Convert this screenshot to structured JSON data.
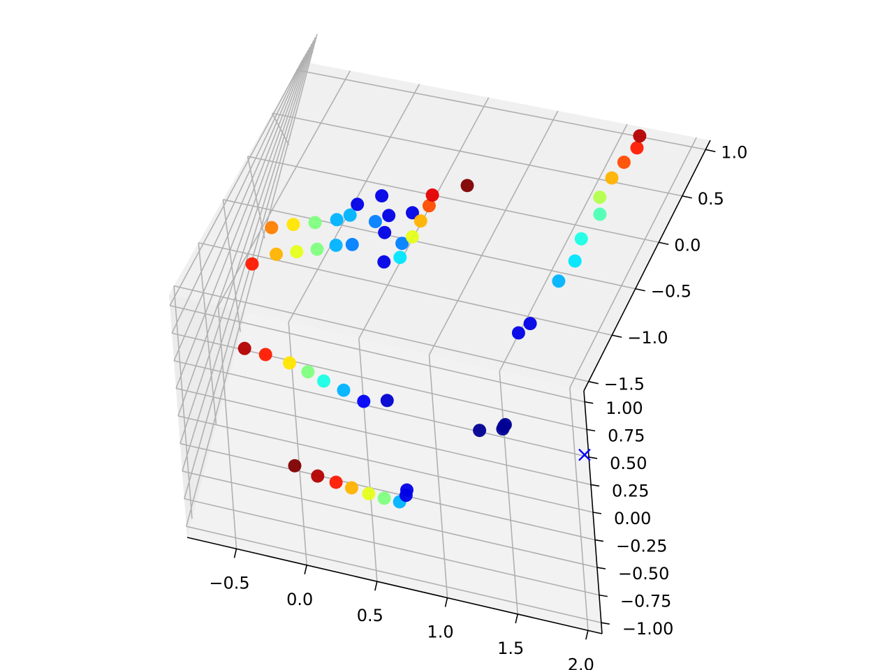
{
  "chart_data": {
    "type": "scatter",
    "projection": "3d",
    "title": "",
    "xlabel": "",
    "ylabel": "",
    "zlabel": "",
    "colormap": "jet",
    "xlim": [
      -0.85,
      2.1
    ],
    "ylim": [
      -1.1,
      1.1
    ],
    "zlim": [
      -1.6,
      1.1
    ],
    "x_ticks": [
      "−0.5",
      "0.0",
      "0.5",
      "1.0",
      "1.5",
      "2.0"
    ],
    "y_ticks": [
      "−1.00",
      "−0.75",
      "−0.50",
      "−0.25",
      "0.00",
      "0.25",
      "0.50",
      "0.75",
      "1.00"
    ],
    "z_ticks": [
      "−1.5",
      "−1.0",
      "−0.5",
      "0.0",
      "0.5",
      "1.0"
    ],
    "grid": true,
    "series": [
      {
        "marker": "circle",
        "points": [
          {
            "x": -0.5,
            "y": 0.26,
            "z": -1.2,
            "c": 0.95
          },
          {
            "x": -0.33,
            "y": 0.32,
            "z": -1.25,
            "c": 0.85
          },
          {
            "x": -0.14,
            "y": 0.36,
            "z": -1.3,
            "c": 0.65
          },
          {
            "x": 0.01,
            "y": 0.38,
            "z": -1.35,
            "c": 0.5
          },
          {
            "x": 0.14,
            "y": 0.39,
            "z": -1.4,
            "c": 0.4
          },
          {
            "x": 0.3,
            "y": 0.41,
            "z": -1.45,
            "c": 0.3
          },
          {
            "x": 0.46,
            "y": 0.41,
            "z": -1.5,
            "c": 0.12
          },
          {
            "x": 0.63,
            "y": 0.47,
            "z": -1.5,
            "c": 0.08
          },
          {
            "x": -0.12,
            "y": -0.53,
            "z": -1.4,
            "c": 1.0
          },
          {
            "x": 0.04,
            "y": -0.58,
            "z": -1.4,
            "c": 0.95
          },
          {
            "x": 0.17,
            "y": -0.6,
            "z": -1.4,
            "c": 0.85
          },
          {
            "x": 0.28,
            "y": -0.62,
            "z": -1.4,
            "c": 0.7
          },
          {
            "x": 0.4,
            "y": -0.64,
            "z": -1.4,
            "c": 0.6
          },
          {
            "x": 0.51,
            "y": -0.65,
            "z": -1.4,
            "c": 0.5
          },
          {
            "x": 0.62,
            "y": -0.65,
            "z": -1.4,
            "c": 0.3
          },
          {
            "x": 0.67,
            "y": -0.57,
            "z": -1.4,
            "c": 0.1
          },
          {
            "x": 0.67,
            "y": -0.55,
            "z": -1.38,
            "c": 0.1
          },
          {
            "x": 1.22,
            "y": 0.18,
            "z": -1.35,
            "c": 0.02
          },
          {
            "x": 1.39,
            "y": 0.25,
            "z": -1.35,
            "c": 0.02
          },
          {
            "x": 1.4,
            "y": 0.28,
            "z": -1.35,
            "c": 0.02
          },
          {
            "x": 1.41,
            "y": 0.3,
            "z": -1.35,
            "c": 0.02
          },
          {
            "x": -0.56,
            "y": 0.7,
            "z": -0.8,
            "c": 0.85
          },
          {
            "x": -0.42,
            "y": 0.75,
            "z": -0.7,
            "c": 0.7
          },
          {
            "x": -0.29,
            "y": 0.77,
            "z": -0.65,
            "c": 0.6
          },
          {
            "x": -0.16,
            "y": 0.79,
            "z": -0.6,
            "c": 0.5
          },
          {
            "x": -0.04,
            "y": 0.83,
            "z": -0.55,
            "c": 0.3
          },
          {
            "x": 0.08,
            "y": 0.9,
            "z": -0.55,
            "c": 0.25
          },
          {
            "x": -0.52,
            "y": 0.8,
            "z": -0.5,
            "c": 0.75
          },
          {
            "x": -0.38,
            "y": 0.84,
            "z": -0.45,
            "c": 0.65
          },
          {
            "x": -0.24,
            "y": 0.86,
            "z": -0.4,
            "c": 0.5
          },
          {
            "x": -0.1,
            "y": 0.9,
            "z": -0.35,
            "c": 0.3
          },
          {
            "x": -0.02,
            "y": 0.94,
            "z": -0.3,
            "c": 0.3
          },
          {
            "x": 0.0,
            "y": 0.98,
            "z": -0.2,
            "c": 0.1
          },
          {
            "x": 0.16,
            "y": 0.92,
            "z": -0.3,
            "c": 0.25
          },
          {
            "x": 0.32,
            "y": 0.82,
            "z": -0.6,
            "c": 0.1
          },
          {
            "x": 0.22,
            "y": 0.88,
            "z": -0.2,
            "c": 0.1
          },
          {
            "x": 0.24,
            "y": 0.85,
            "z": -0.35,
            "c": 0.1
          },
          {
            "x": 0.12,
            "y": 0.93,
            "z": -0.05,
            "c": 0.1
          },
          {
            "x": 0.35,
            "y": 0.8,
            "z": -0.1,
            "c": 0.1
          },
          {
            "x": 0.38,
            "y": 0.82,
            "z": -0.4,
            "c": 0.25
          },
          {
            "x": 0.42,
            "y": 0.86,
            "z": -0.55,
            "c": 0.35
          },
          {
            "x": 0.44,
            "y": 0.88,
            "z": -0.35,
            "c": 0.6
          },
          {
            "x": 0.45,
            "y": 0.91,
            "z": -0.2,
            "c": 0.7
          },
          {
            "x": 0.46,
            "y": 0.93,
            "z": -0.05,
            "c": 0.8
          },
          {
            "x": 0.45,
            "y": 0.95,
            "z": 0.05,
            "c": 0.9
          },
          {
            "x": 0.65,
            "y": 0.98,
            "z": 0.2,
            "c": 1.0
          },
          {
            "x": 1.42,
            "y": 0.87,
            "z": -1.0,
            "c": 0.1
          },
          {
            "x": 1.47,
            "y": 0.88,
            "z": -0.9,
            "c": 0.1
          },
          {
            "x": 1.52,
            "y": 0.85,
            "z": -0.45,
            "c": 0.3
          },
          {
            "x": 1.57,
            "y": 0.87,
            "z": -0.25,
            "c": 0.35
          },
          {
            "x": 1.55,
            "y": 0.9,
            "z": -0.05,
            "c": 0.4
          },
          {
            "x": 1.6,
            "y": 0.93,
            "z": 0.2,
            "c": 0.45
          },
          {
            "x": 1.55,
            "y": 0.96,
            "z": 0.35,
            "c": 0.55
          },
          {
            "x": 1.57,
            "y": 0.98,
            "z": 0.55,
            "c": 0.7
          },
          {
            "x": 1.6,
            "y": 0.98,
            "z": 0.72,
            "c": 0.8
          },
          {
            "x": 1.64,
            "y": 1.0,
            "z": 0.88,
            "c": 0.85
          },
          {
            "x": 1.62,
            "y": 1.02,
            "z": 1.0,
            "c": 0.95
          }
        ]
      },
      {
        "marker": "x",
        "color": "#0000ff",
        "points": [
          {
            "x": 2.05,
            "y": 0.45,
            "z": -1.55
          }
        ]
      }
    ]
  }
}
